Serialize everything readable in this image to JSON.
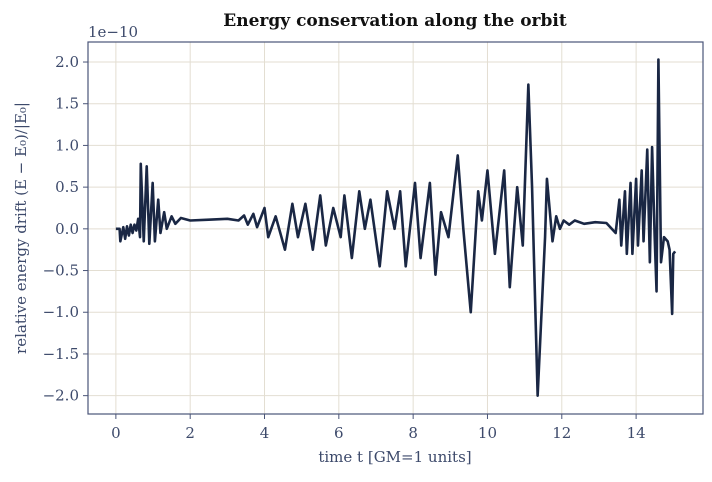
{
  "chart_data": {
    "type": "line",
    "title": "Energy conservation along the orbit",
    "xlabel": "time  t  [GM=1 units]",
    "ylabel": "relative energy drift  (E − E₀)/|E₀|",
    "offset_text": "1e−10",
    "color": "#1a2744",
    "grid": true,
    "xlim": [
      -0.75,
      15.8
    ],
    "ylim": [
      -2.22,
      2.24
    ],
    "xticks": [
      0,
      2,
      4,
      6,
      8,
      10,
      12,
      14
    ],
    "yticks": [
      {
        "value": -2,
        "label": "−2.0"
      },
      {
        "value": -1.5,
        "label": "−1.5"
      },
      {
        "value": -1,
        "label": "−1.0"
      },
      {
        "value": -0.5,
        "label": "−0.5"
      },
      {
        "value": 0,
        "label": "0.0"
      },
      {
        "value": 0.5,
        "label": "0.5"
      },
      {
        "value": 1,
        "label": "1.0"
      },
      {
        "value": 1.5,
        "label": "1.5"
      },
      {
        "value": 2,
        "label": "2.0"
      }
    ],
    "x": [
      0,
      0.1,
      0.12,
      0.2,
      0.25,
      0.3,
      0.35,
      0.4,
      0.45,
      0.5,
      0.55,
      0.6,
      0.65,
      0.67,
      0.75,
      0.83,
      0.9,
      0.99,
      1.05,
      1.14,
      1.2,
      1.3,
      1.37,
      1.5,
      1.6,
      1.75,
      2.0,
      2.5,
      3.0,
      3.3,
      3.45,
      3.55,
      3.7,
      3.8,
      4.0,
      4.1,
      4.3,
      4.55,
      4.75,
      4.9,
      5.1,
      5.3,
      5.5,
      5.65,
      5.85,
      6.05,
      6.15,
      6.35,
      6.55,
      6.7,
      6.85,
      7.1,
      7.3,
      7.5,
      7.65,
      7.8,
      8.05,
      8.2,
      8.45,
      8.6,
      8.75,
      8.95,
      9.2,
      9.35,
      9.55,
      9.75,
      9.85,
      10.0,
      10.2,
      10.45,
      10.6,
      10.8,
      10.95,
      11.1,
      11.2,
      11.35,
      11.55,
      11.6,
      11.75,
      11.85,
      11.95,
      12.05,
      12.2,
      12.35,
      12.6,
      12.9,
      13.2,
      13.45,
      13.55,
      13.6,
      13.7,
      13.75,
      13.85,
      13.9,
      14.0,
      14.05,
      14.15,
      14.2,
      14.3,
      14.37,
      14.43,
      14.5,
      14.55,
      14.6,
      14.67,
      14.75,
      14.85,
      14.9,
      14.97,
      15.0,
      15.05
    ],
    "values": [
      0,
      0,
      -0.15,
      0.02,
      -0.12,
      0.03,
      -0.08,
      0.05,
      -0.05,
      0.05,
      -0.02,
      0.12,
      -0.1,
      0.78,
      -0.15,
      0.75,
      -0.18,
      0.55,
      -0.15,
      0.35,
      -0.05,
      0.2,
      0.0,
      0.15,
      0.06,
      0.13,
      0.1,
      0.11,
      0.12,
      0.1,
      0.16,
      0.05,
      0.18,
      0.02,
      0.25,
      -0.1,
      0.15,
      -0.25,
      0.3,
      -0.1,
      0.3,
      -0.25,
      0.4,
      -0.2,
      0.25,
      -0.1,
      0.4,
      -0.35,
      0.45,
      0.0,
      0.35,
      -0.45,
      0.45,
      0.0,
      0.45,
      -0.45,
      0.55,
      -0.35,
      0.55,
      -0.55,
      0.2,
      -0.1,
      0.88,
      0.0,
      -1.0,
      0.45,
      0.1,
      0.7,
      -0.3,
      0.7,
      -0.7,
      0.5,
      -0.2,
      1.73,
      0.5,
      -2.0,
      -0.1,
      0.6,
      -0.15,
      0.15,
      0.0,
      0.1,
      0.05,
      0.1,
      0.06,
      0.08,
      0.07,
      -0.05,
      0.35,
      -0.2,
      0.45,
      -0.3,
      0.55,
      -0.3,
      0.6,
      -0.2,
      0.7,
      -0.15,
      0.95,
      -0.4,
      0.98,
      -0.1,
      -0.75,
      2.03,
      -0.4,
      -0.1,
      -0.15,
      -0.25,
      -1.02,
      -0.3,
      -0.27
    ]
  }
}
